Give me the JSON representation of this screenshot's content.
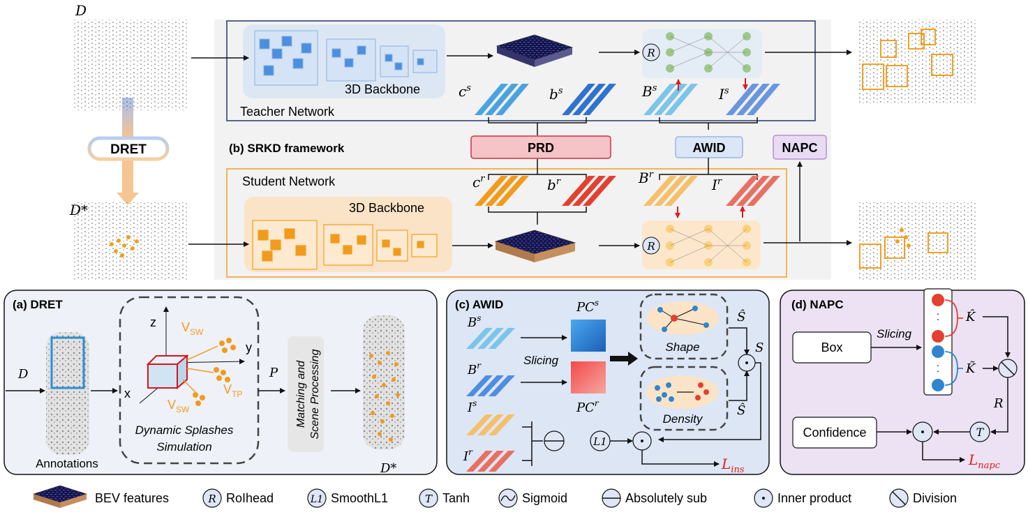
{
  "top": {
    "input_d": "D",
    "input_dstar": "D*",
    "dret_label": "DRET",
    "framework_title": "(b) SRKD framework",
    "teacher": {
      "backbone": "3D Backbone",
      "network": "Teacher Network",
      "c": "c",
      "c_sup": "s",
      "b": "b",
      "b_sup": "s",
      "B": "B",
      "B_sup": "s",
      "I": "I",
      "I_sup": "s",
      "dots": "...",
      "roi": "R"
    },
    "student": {
      "backbone": "3D Backbone",
      "network": "Student Network",
      "c": "c",
      "c_sup": "r",
      "b": "b",
      "b_sup": "r",
      "B": "B",
      "B_sup": "r",
      "I": "I",
      "I_sup": "r",
      "dots": "...",
      "roi": "R"
    },
    "prd": "PRD",
    "awid": "AWID",
    "napc": "NAPC"
  },
  "panel_a": {
    "title": "(a) DRET",
    "d": "D",
    "annotations": "Annotations",
    "axis_z": "z",
    "axis_y": "y",
    "axis_x": "x",
    "vsw": "V",
    "vsw_sub": "SW",
    "vtp": "V",
    "vtp_sub": "TP",
    "p": "P",
    "sim_line1": "Dynamic Splashes",
    "sim_line2": "Simulation",
    "match_line1": "Matching and",
    "match_line2": "Scene Processing",
    "dstar": "D*"
  },
  "panel_c": {
    "title": "(c) AWID",
    "B": "B",
    "Bs_sup": "s",
    "Br_sup": "r",
    "I": "I",
    "Is_sup": "s",
    "Ir_sup": "r",
    "PC": "PC",
    "PCs_sup": "s",
    "PCr_sup": "r",
    "slicing": "Slicing",
    "shape": "Shape",
    "density": "Density",
    "shat": "Ŝ",
    "s": "S",
    "l1": "L1",
    "L": "L",
    "L_sub": "ins",
    "dots": "..."
  },
  "panel_d": {
    "title": "(d) NAPC",
    "box": "Box",
    "slicing": "Slicing",
    "khat": "K̂",
    "ktilde": "K̃",
    "r": "R",
    "confidence": "Confidence",
    "t": "T",
    "L": "L",
    "L_sub": "napc",
    "dots": "·"
  },
  "legend": {
    "bev": "BEV features",
    "roi_sym": "R",
    "roi": "RoIhead",
    "l1_sym": "L1",
    "l1": "SmoothL1",
    "t_sym": "T",
    "tanh": "Tanh",
    "sigmoid": "Sigmoid",
    "abs": "Absolutely sub",
    "inner": "Inner product",
    "div": "Division"
  },
  "colors": {
    "teacher_blue": "#3b8fd9",
    "student_orange": "#f4a42a",
    "student_red": "#e8483a",
    "prd_fill": "#f6c3c8",
    "prd_stroke": "#cc3340",
    "awid_fill": "#dbe6f7",
    "napc_fill": "#e8dcf2",
    "panel_a_bg": "#eef1f8",
    "panel_d_bg": "#ece2f3"
  }
}
